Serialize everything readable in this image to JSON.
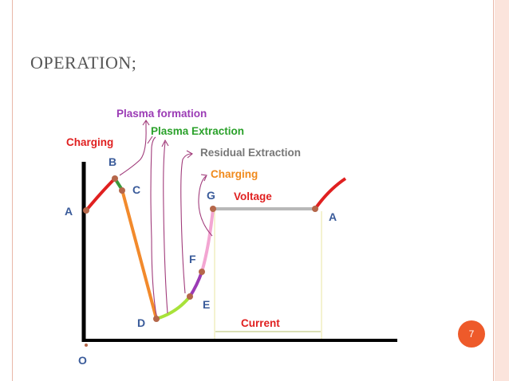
{
  "slide": {
    "title": "OPERATION;",
    "page_number": "7"
  },
  "diagram": {
    "points": {
      "O": "O",
      "A": "A",
      "B": "B",
      "C": "C",
      "D": "D",
      "E": "E",
      "F": "F",
      "G": "G",
      "A2": "A"
    },
    "annotations": {
      "charging_1": "Charging",
      "plasma_formation": "Plasma formation",
      "plasma_extraction": "Plasma Extraction",
      "residual_extraction": "Residual Extraction",
      "charging_2": "Charging",
      "voltage": "Voltage",
      "current": "Current"
    },
    "colors": {
      "charging": "#e02020",
      "plasma_formation": "#9b3bb5",
      "plasma_extraction": "#2aa12a",
      "residual_extraction": "#777777",
      "charging_2": "#f08a1c",
      "point_labels": "#3a5b9a",
      "segment_bc": "#3a9a3a",
      "segment_cd": "#f28a2c",
      "segment_de": "#a8e23a",
      "segment_ef": "#9b3bb5",
      "segment_fg": "#f3a6d2",
      "voltage_line": "#b8b8b8",
      "marker": "#b5674a"
    }
  }
}
